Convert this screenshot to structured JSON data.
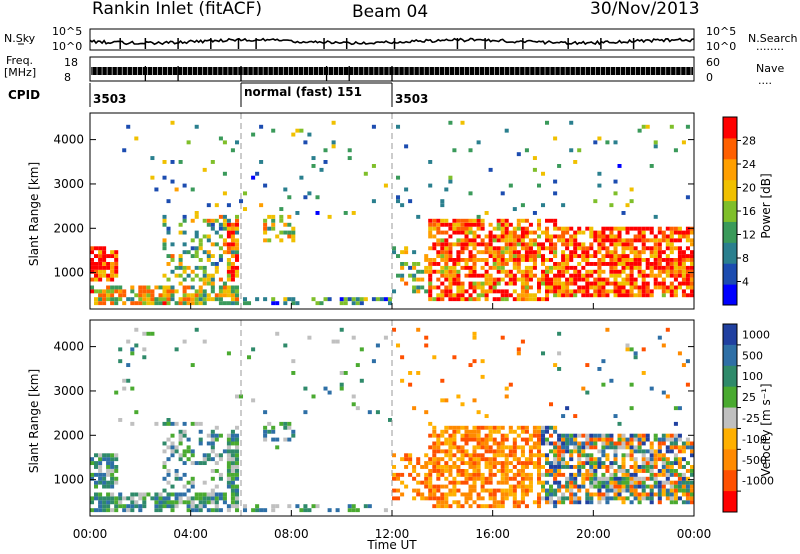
{
  "header": {
    "station": "Rankin Inlet (fitACF)",
    "beam": "Beam 04",
    "date": "30/Nov/2013"
  },
  "noise_panel": {
    "left_label": "N.Sky",
    "left_ticks": [
      "10^5",
      "10^0"
    ],
    "right_ticks": [
      "10^5",
      "10^0"
    ],
    "right_label": "N.Search",
    "right_legend_dots": "........"
  },
  "freq_panel": {
    "left_label_top": "Freq.",
    "left_label_unit": "[MHz]",
    "left_ticks": [
      "18",
      "8"
    ],
    "right_ticks": [
      "60",
      "0"
    ],
    "right_label": "Nave",
    "right_legend_dots": "...."
  },
  "cpid": {
    "label": "CPID",
    "segments": [
      {
        "start_hour": 0,
        "end_hour": 6,
        "text": "3503"
      },
      {
        "start_hour": 6,
        "end_hour": 12,
        "text": "normal (fast) 151"
      },
      {
        "start_hour": 12,
        "end_hour": 24,
        "text": "3503"
      }
    ]
  },
  "x_axis": {
    "title": "Time UT",
    "ticks": [
      "00:00",
      "04:00",
      "08:00",
      "12:00",
      "16:00",
      "20:00",
      "00:00"
    ],
    "tick_hours": [
      0,
      4,
      8,
      12,
      16,
      20,
      24
    ]
  },
  "chart_data": [
    {
      "type": "heatmap",
      "title": "",
      "xlabel": "",
      "ylabel": "Slant Range [km]",
      "xlim": [
        0,
        24
      ],
      "ylim": [
        180,
        4600
      ],
      "yticks": [
        1000,
        2000,
        3000,
        4000
      ],
      "colorbar": {
        "label": "Power [dB]",
        "ticks": [
          "4",
          "8",
          "12",
          "16",
          "20",
          "24",
          "28"
        ],
        "colors": [
          "#0000ff",
          "#1c4cb0",
          "#2a7f8e",
          "#3a9a5a",
          "#7fbf2a",
          "#f0c000",
          "#ff9f00",
          "#ff6000",
          "#ff0000"
        ]
      }
    },
    {
      "type": "heatmap",
      "title": "",
      "xlabel": "Time UT",
      "ylabel": "Slant Range [km]",
      "xlim": [
        0,
        24
      ],
      "ylim": [
        180,
        4600
      ],
      "yticks": [
        1000,
        2000,
        3000,
        4000
      ],
      "colorbar": {
        "label": "Velocity [m s⁻¹]",
        "ticks": [
          "1000",
          "500",
          "100",
          "25",
          "-25",
          "-100",
          "-500",
          "-1000"
        ],
        "colors": [
          "#2040a0",
          "#2e6fa6",
          "#2f8a6a",
          "#4aaa30",
          "#c0c0c0",
          "#ffb000",
          "#ff8a00",
          "#ff5000",
          "#ff0000"
        ]
      }
    }
  ]
}
